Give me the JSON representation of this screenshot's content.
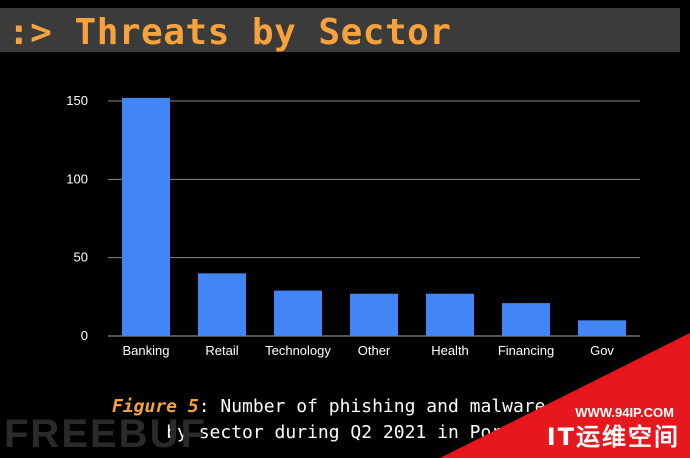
{
  "header": {
    "title": ":> Threats by Sector"
  },
  "caption": {
    "label": "Figure 5",
    "line1": ": Number of phishing and malware ca",
    "line2": "by sector during Q2 2021 in Portu"
  },
  "watermarks": {
    "left": "FREEBUF",
    "url": "WWW.94IP.COM",
    "cn": "IT运维空间"
  },
  "colors": {
    "bar": "#4285f4",
    "title": "#f7a23b",
    "grid": "#888888"
  },
  "chart_data": {
    "type": "bar",
    "categories": [
      "Banking",
      "Retail",
      "Technology",
      "Other",
      "Health",
      "Financing",
      "Gov"
    ],
    "values": [
      152,
      40,
      29,
      27,
      27,
      21,
      10
    ],
    "ylim": [
      0,
      150
    ],
    "yticks": [
      0,
      50,
      100,
      150
    ],
    "grid": true,
    "xlabel": "",
    "ylabel": ""
  }
}
